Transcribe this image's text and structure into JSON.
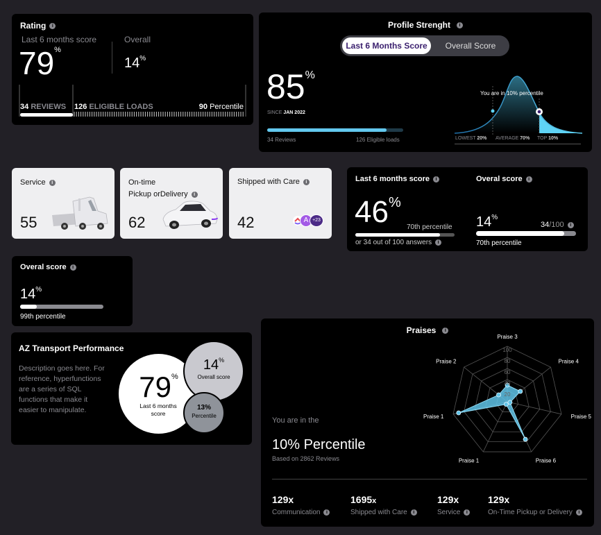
{
  "rating": {
    "title": "Rating",
    "last6_label": "Last 6 months score",
    "last6_value": "79",
    "last6_unit": "%",
    "overall_label": "Overall",
    "overall_value": "14",
    "overall_unit": "%",
    "reviews_count": "34",
    "reviews_label": "REVIEWS",
    "loads_count": "126",
    "loads_label": "ELIGIBLE LOADS",
    "percentile_value": "90",
    "percentile_label": "Percentile"
  },
  "profile": {
    "title": "Profile Strenght",
    "tab_active": "Last 6 Months Score",
    "tab_inactive": "Overall Score",
    "score": "85",
    "unit": "%",
    "since_label": "SINCE",
    "since_value": "JAN 2022",
    "progress": 0.88,
    "reviews": "34 Reviews",
    "loads": "126 Eligible loads",
    "curve_label": "You are in 10% percentile",
    "lowest_label": "LOWEST",
    "lowest_value": "20%",
    "average_label": "AVERAGE",
    "average_value": "70%",
    "top_label": "TOP",
    "top_value": "10%"
  },
  "service": {
    "label": "Service",
    "value": "55"
  },
  "ontime": {
    "label_line1": "On-time",
    "label_line2": "Pickup orDelivery",
    "value": "62"
  },
  "shipped": {
    "label": "Shipped with Care",
    "value": "42",
    "avatar1": "A",
    "avatar2": "+23"
  },
  "last6": {
    "title": "Last 6 months score",
    "value": "46",
    "unit": "%",
    "percentile": "70th percentile",
    "answers": "or 34 out of 100 answers",
    "progress": 0.85,
    "overal_title": "Overal score",
    "overal_value": "14",
    "overal_unit": "%",
    "overal_fraction_num": "34",
    "overal_fraction_den": "/100",
    "overal_progress": 0.88,
    "overal_percentile": "70th percentile"
  },
  "overall_small": {
    "title": "Overal score",
    "value": "14",
    "unit": "%",
    "progress": 0.2,
    "percentile": "99th percentile"
  },
  "az": {
    "title": "AZ Transport Performance",
    "description": "Description goes here. For reference, hyperfunctions are a series of SQL functions that make it easier to manipulate.",
    "big_value": "79",
    "big_unit": "%",
    "big_label": "Last 6 months score",
    "mid_value": "14",
    "mid_unit": "%",
    "mid_label": "Overall score",
    "small_value": "13%",
    "small_label": "Percentile"
  },
  "praises": {
    "title": "Praises",
    "you_are": "You are in the",
    "percentile": "10% Percentile",
    "based": "Based on 2862 Reviews",
    "ticks": [
      "100",
      "80",
      "60",
      "40",
      "20"
    ],
    "axes": [
      "Praise 3",
      "Praise 4",
      "Praise 5",
      "Praise 6",
      "Praise 1",
      "Praise 1",
      "Praise 2"
    ],
    "values": [
      30,
      30,
      5,
      75,
      5,
      90,
      20
    ],
    "stats": [
      {
        "value": "129x",
        "label": "Communication"
      },
      {
        "value": "1695",
        "suffix": "x",
        "label": "Shipped with Care"
      },
      {
        "value": "129x",
        "label": "Service"
      },
      {
        "value": "129x",
        "label": "On-Time Pickup or Delivery"
      }
    ]
  }
}
